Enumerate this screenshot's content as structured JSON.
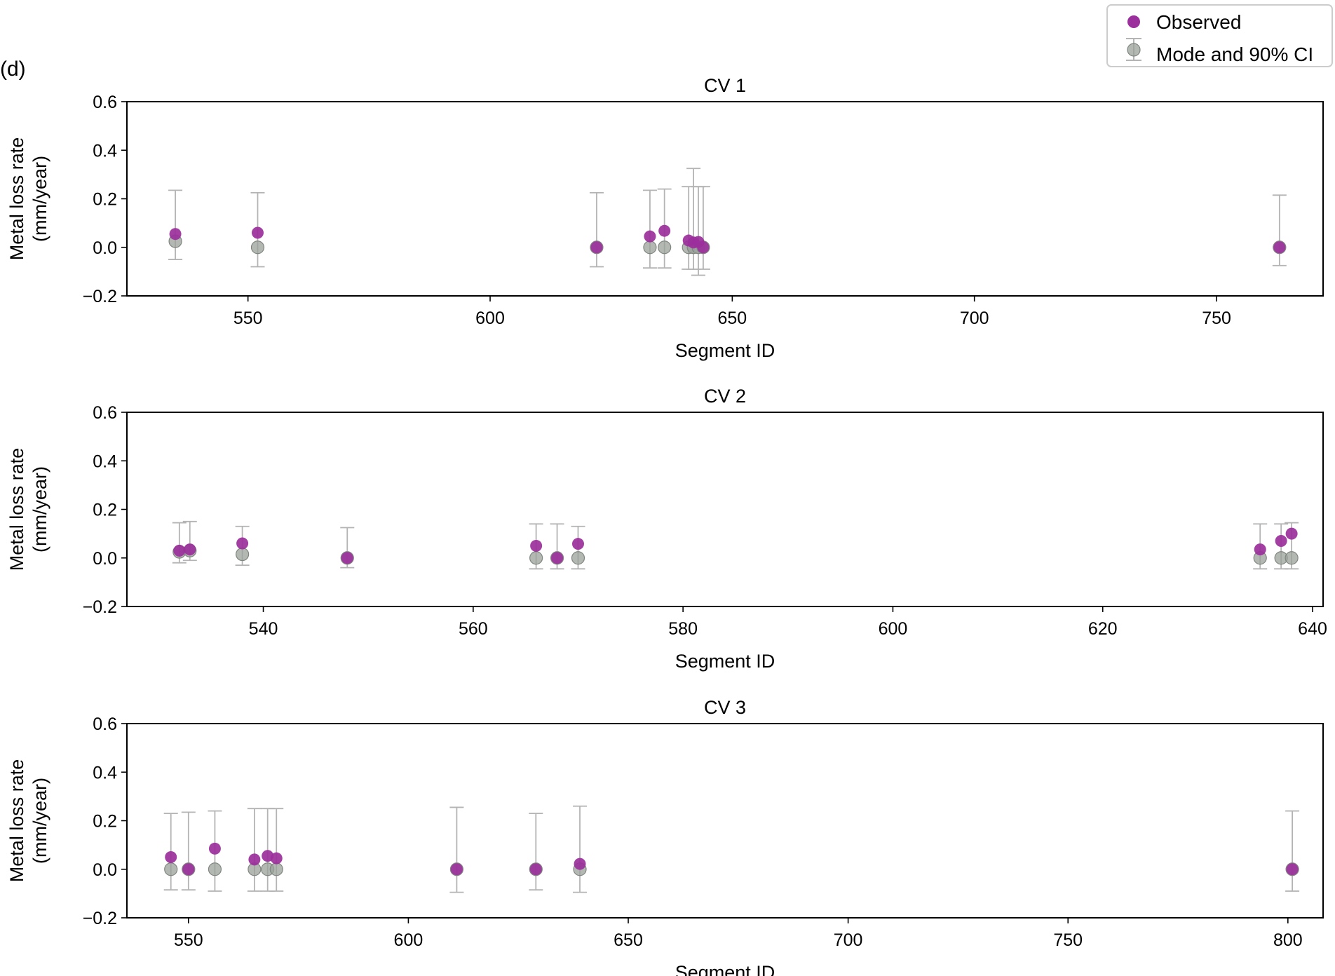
{
  "panel_label": "(d)",
  "legend": {
    "observed_label": "Observed",
    "mode_label": "Mode and 90% CI"
  },
  "colors": {
    "observed": "#9b2f9b",
    "mode": "#9aa09a",
    "errorbar": "#b4b4b4",
    "axes": "#000000"
  },
  "chart_data": [
    {
      "type": "scatter",
      "title": "CV 1",
      "xlabel": "Segment ID",
      "ylabel": [
        "Metal loss rate",
        "(mm/year)"
      ],
      "xlim": [
        525,
        772
      ],
      "ylim": [
        -0.2,
        0.6
      ],
      "xticks": [
        550,
        600,
        650,
        700,
        750
      ],
      "yticks": [
        0.6,
        0.4,
        0.2,
        0.0,
        -0.2
      ],
      "ytick_labels": [
        "0.6",
        "0.4",
        "0.2",
        "0.0",
        "−0.2"
      ],
      "grid": false,
      "series": [
        {
          "name": "Mode and 90% CI",
          "kind": "errorbar",
          "points": [
            {
              "x": 535,
              "y": 0.025,
              "lo": -0.05,
              "hi": 0.235
            },
            {
              "x": 552,
              "y": 0.0,
              "lo": -0.08,
              "hi": 0.225
            },
            {
              "x": 622,
              "y": 0.0,
              "lo": -0.08,
              "hi": 0.225
            },
            {
              "x": 633,
              "y": 0.0,
              "lo": -0.085,
              "hi": 0.235
            },
            {
              "x": 636,
              "y": 0.0,
              "lo": -0.085,
              "hi": 0.24
            },
            {
              "x": 641,
              "y": 0.0,
              "lo": -0.09,
              "hi": 0.25
            },
            {
              "x": 642,
              "y": 0.0,
              "lo": -0.09,
              "hi": 0.325
            },
            {
              "x": 643,
              "y": 0.0,
              "lo": -0.115,
              "hi": 0.25
            },
            {
              "x": 644,
              "y": 0.0,
              "lo": -0.09,
              "hi": 0.25
            },
            {
              "x": 763,
              "y": 0.0,
              "lo": -0.075,
              "hi": 0.215
            }
          ]
        },
        {
          "name": "Observed",
          "kind": "scatter",
          "points": [
            {
              "x": 535,
              "y": 0.055
            },
            {
              "x": 552,
              "y": 0.06
            },
            {
              "x": 622,
              "y": 0.0
            },
            {
              "x": 633,
              "y": 0.045
            },
            {
              "x": 636,
              "y": 0.068
            },
            {
              "x": 641,
              "y": 0.028
            },
            {
              "x": 642,
              "y": 0.02
            },
            {
              "x": 643,
              "y": 0.022
            },
            {
              "x": 644,
              "y": 0.0
            },
            {
              "x": 763,
              "y": 0.0
            }
          ]
        }
      ]
    },
    {
      "type": "scatter",
      "title": "CV 2",
      "xlabel": "Segment ID",
      "ylabel": [
        "Metal loss rate",
        "(mm/year)"
      ],
      "xlim": [
        527,
        641
      ],
      "ylim": [
        -0.2,
        0.6
      ],
      "xticks": [
        540,
        560,
        580,
        600,
        620,
        640
      ],
      "yticks": [
        0.6,
        0.4,
        0.2,
        0.0,
        -0.2
      ],
      "ytick_labels": [
        "0.6",
        "0.4",
        "0.2",
        "0.0",
        "−0.2"
      ],
      "grid": false,
      "series": [
        {
          "name": "Mode and 90% CI",
          "kind": "errorbar",
          "points": [
            {
              "x": 532,
              "y": 0.025,
              "lo": -0.02,
              "hi": 0.145
            },
            {
              "x": 533,
              "y": 0.03,
              "lo": -0.01,
              "hi": 0.15
            },
            {
              "x": 538,
              "y": 0.015,
              "lo": -0.03,
              "hi": 0.13
            },
            {
              "x": 548,
              "y": 0.0,
              "lo": -0.04,
              "hi": 0.125
            },
            {
              "x": 566,
              "y": 0.0,
              "lo": -0.045,
              "hi": 0.14
            },
            {
              "x": 568,
              "y": 0.0,
              "lo": -0.045,
              "hi": 0.14
            },
            {
              "x": 570,
              "y": 0.0,
              "lo": -0.045,
              "hi": 0.13
            },
            {
              "x": 635,
              "y": 0.0,
              "lo": -0.045,
              "hi": 0.14
            },
            {
              "x": 637,
              "y": 0.0,
              "lo": -0.045,
              "hi": 0.14
            },
            {
              "x": 638,
              "y": 0.0,
              "lo": -0.045,
              "hi": 0.145
            }
          ]
        },
        {
          "name": "Observed",
          "kind": "scatter",
          "points": [
            {
              "x": 532,
              "y": 0.03
            },
            {
              "x": 533,
              "y": 0.035
            },
            {
              "x": 538,
              "y": 0.06
            },
            {
              "x": 548,
              "y": 0.0
            },
            {
              "x": 566,
              "y": 0.05
            },
            {
              "x": 568,
              "y": 0.0
            },
            {
              "x": 570,
              "y": 0.058
            },
            {
              "x": 635,
              "y": 0.035
            },
            {
              "x": 637,
              "y": 0.07
            },
            {
              "x": 638,
              "y": 0.1
            }
          ]
        }
      ]
    },
    {
      "type": "scatter",
      "title": "CV 3",
      "xlabel": "Segment ID",
      "ylabel": [
        "Metal loss rate",
        "(mm/year)"
      ],
      "xlim": [
        536,
        808
      ],
      "ylim": [
        -0.2,
        0.6
      ],
      "xticks": [
        550,
        600,
        650,
        700,
        750,
        800
      ],
      "yticks": [
        0.6,
        0.4,
        0.2,
        0.0,
        -0.2
      ],
      "ytick_labels": [
        "0.6",
        "0.4",
        "0.2",
        "0.0",
        "−0.2"
      ],
      "grid": false,
      "series": [
        {
          "name": "Mode and 90% CI",
          "kind": "errorbar",
          "points": [
            {
              "x": 546,
              "y": 0.0,
              "lo": -0.085,
              "hi": 0.23
            },
            {
              "x": 550,
              "y": 0.0,
              "lo": -0.085,
              "hi": 0.235
            },
            {
              "x": 556,
              "y": 0.0,
              "lo": -0.09,
              "hi": 0.24
            },
            {
              "x": 565,
              "y": 0.0,
              "lo": -0.09,
              "hi": 0.25
            },
            {
              "x": 568,
              "y": 0.0,
              "lo": -0.09,
              "hi": 0.25
            },
            {
              "x": 570,
              "y": 0.0,
              "lo": -0.09,
              "hi": 0.25
            },
            {
              "x": 611,
              "y": 0.0,
              "lo": -0.095,
              "hi": 0.255
            },
            {
              "x": 629,
              "y": 0.0,
              "lo": -0.085,
              "hi": 0.23
            },
            {
              "x": 639,
              "y": 0.0,
              "lo": -0.095,
              "hi": 0.26
            },
            {
              "x": 801,
              "y": 0.0,
              "lo": -0.09,
              "hi": 0.24
            }
          ]
        },
        {
          "name": "Observed",
          "kind": "scatter",
          "points": [
            {
              "x": 546,
              "y": 0.05
            },
            {
              "x": 550,
              "y": 0.0
            },
            {
              "x": 556,
              "y": 0.085
            },
            {
              "x": 565,
              "y": 0.04
            },
            {
              "x": 568,
              "y": 0.055
            },
            {
              "x": 570,
              "y": 0.045
            },
            {
              "x": 611,
              "y": 0.0
            },
            {
              "x": 629,
              "y": 0.0
            },
            {
              "x": 639,
              "y": 0.022
            },
            {
              "x": 801,
              "y": 0.0
            }
          ]
        }
      ]
    }
  ]
}
